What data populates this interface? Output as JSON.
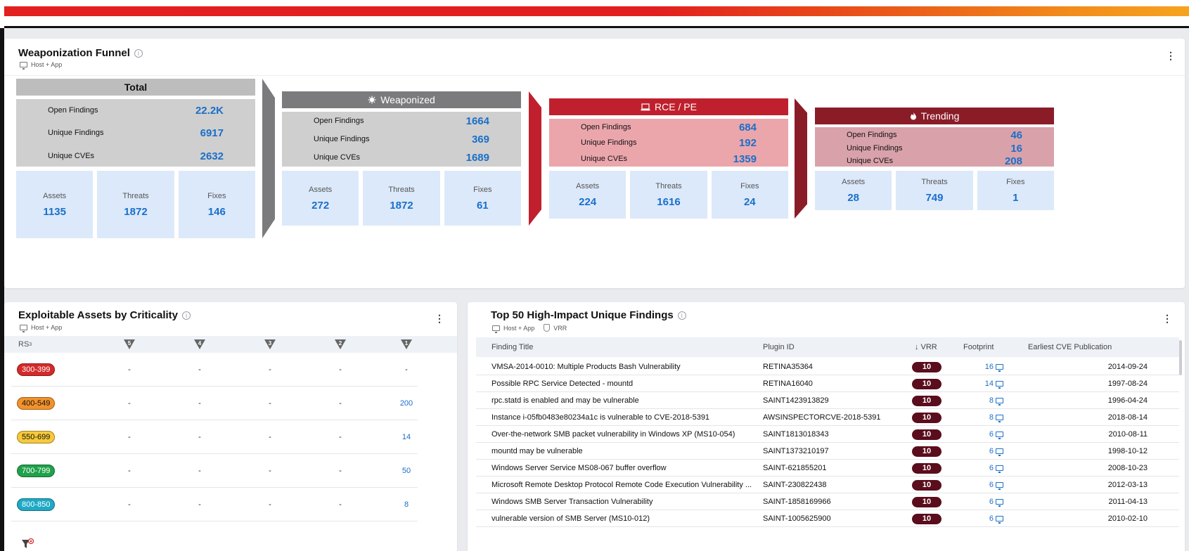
{
  "colors": {
    "accent": "#1a6fc9",
    "total": "#7b7b7d",
    "weaponized": "#7b7b7d",
    "rce": "#c0202e",
    "trending": "#8a1c28",
    "vrr": "#5a0d1c"
  },
  "funnel": {
    "title": "Weaponization Funnel",
    "tag": "Host + App",
    "stages": [
      {
        "key": "total",
        "title": "Total",
        "icon": "",
        "metrics": [
          {
            "label": "Open Findings",
            "value": "22.2K"
          },
          {
            "label": "Unique Findings",
            "value": "6917"
          },
          {
            "label": "Unique CVEs",
            "value": "2632"
          }
        ],
        "boxes": [
          {
            "label": "Assets",
            "value": "1135"
          },
          {
            "label": "Threats",
            "value": "1872"
          },
          {
            "label": "Fixes",
            "value": "146"
          }
        ]
      },
      {
        "key": "weaponized",
        "title": "Weaponized",
        "icon": "virus-icon",
        "metrics": [
          {
            "label": "Open Findings",
            "value": "1664"
          },
          {
            "label": "Unique Findings",
            "value": "369"
          },
          {
            "label": "Unique CVEs",
            "value": "1689"
          }
        ],
        "boxes": [
          {
            "label": "Assets",
            "value": "272"
          },
          {
            "label": "Threats",
            "value": "1872"
          },
          {
            "label": "Fixes",
            "value": "61"
          }
        ]
      },
      {
        "key": "rce",
        "title": "RCE / PE",
        "icon": "laptop-icon",
        "metrics": [
          {
            "label": "Open Findings",
            "value": "684"
          },
          {
            "label": "Unique Findings",
            "value": "192"
          },
          {
            "label": "Unique CVEs",
            "value": "1359"
          }
        ],
        "boxes": [
          {
            "label": "Assets",
            "value": "224"
          },
          {
            "label": "Threats",
            "value": "1616"
          },
          {
            "label": "Fixes",
            "value": "24"
          }
        ]
      },
      {
        "key": "trending",
        "title": "Trending",
        "icon": "flame-icon",
        "metrics": [
          {
            "label": "Open Findings",
            "value": "46"
          },
          {
            "label": "Unique Findings",
            "value": "16"
          },
          {
            "label": "Unique CVEs",
            "value": "208"
          }
        ],
        "boxes": [
          {
            "label": "Assets",
            "value": "28"
          },
          {
            "label": "Threats",
            "value": "749"
          },
          {
            "label": "Fixes",
            "value": "1"
          }
        ]
      }
    ]
  },
  "exploitable": {
    "title": "Exploitable Assets by Criticality",
    "tag": "Host + App",
    "rs_label": "RS",
    "rs_sup": "3",
    "levels": [
      "5",
      "4",
      "3",
      "2",
      "1"
    ],
    "rows": [
      {
        "range": "300-399",
        "color": "#d42a2a",
        "text_color": "#ffffff",
        "values": [
          "-",
          "-",
          "-",
          "-",
          "-"
        ]
      },
      {
        "range": "400-549",
        "color": "#f3922b",
        "text_color": "#111111",
        "values": [
          "-",
          "-",
          "-",
          "-",
          "200"
        ]
      },
      {
        "range": "550-699",
        "color": "#f7c93a",
        "text_color": "#111111",
        "values": [
          "-",
          "-",
          "-",
          "-",
          "14"
        ]
      },
      {
        "range": "700-799",
        "color": "#1fa24a",
        "text_color": "#ffffff",
        "values": [
          "-",
          "-",
          "-",
          "-",
          "50"
        ]
      },
      {
        "range": "800-850",
        "color": "#1fa9c6",
        "text_color": "#ffffff",
        "values": [
          "-",
          "-",
          "-",
          "-",
          "8"
        ]
      }
    ]
  },
  "top50": {
    "title": "Top 50 High-Impact Unique Findings",
    "tags": [
      "Host + App",
      "VRR"
    ],
    "columns": {
      "title": "Finding Title",
      "plugin": "Plugin ID",
      "vrr": "VRR",
      "vrr_arrow": "↓",
      "footprint": "Footprint",
      "pub": "Earliest CVE Publication"
    },
    "rows": [
      {
        "title": "VMSA-2014-0010: Multiple Products Bash Vulnerability",
        "plugin": "RETINA35364",
        "vrr": "10",
        "footprint": "16",
        "pub": "2014-09-24"
      },
      {
        "title": "Possible RPC Service Detected - mountd",
        "plugin": "RETINA16040",
        "vrr": "10",
        "footprint": "14",
        "pub": "1997-08-24"
      },
      {
        "title": "rpc.statd is enabled and may be vulnerable",
        "plugin": "SAINT1423913829",
        "vrr": "10",
        "footprint": "8",
        "pub": "1996-04-24"
      },
      {
        "title": "Instance i-05fb0483e80234a1c is vulnerable to CVE-2018-5391",
        "plugin": "AWSINSPECTORCVE-2018-5391",
        "vrr": "10",
        "footprint": "8",
        "pub": "2018-08-14"
      },
      {
        "title": "Over-the-network SMB packet vulnerability in Windows XP (MS10-054)",
        "plugin": "SAINT1813018343",
        "vrr": "10",
        "footprint": "6",
        "pub": "2010-08-11"
      },
      {
        "title": "mountd may be vulnerable",
        "plugin": "SAINT1373210197",
        "vrr": "10",
        "footprint": "6",
        "pub": "1998-10-12"
      },
      {
        "title": "Windows Server Service MS08-067 buffer overflow",
        "plugin": "SAINT-621855201",
        "vrr": "10",
        "footprint": "6",
        "pub": "2008-10-23"
      },
      {
        "title": "Microsoft Remote Desktop Protocol Remote Code Execution Vulnerability ...",
        "plugin": "SAINT-230822438",
        "vrr": "10",
        "footprint": "6",
        "pub": "2012-03-13"
      },
      {
        "title": "Windows SMB Server Transaction Vulnerability",
        "plugin": "SAINT-1858169966",
        "vrr": "10",
        "footprint": "6",
        "pub": "2011-04-13"
      },
      {
        "title": "vulnerable version of SMB Server (MS10-012)",
        "plugin": "SAINT-1005625900",
        "vrr": "10",
        "footprint": "6",
        "pub": "2010-02-10"
      }
    ]
  }
}
